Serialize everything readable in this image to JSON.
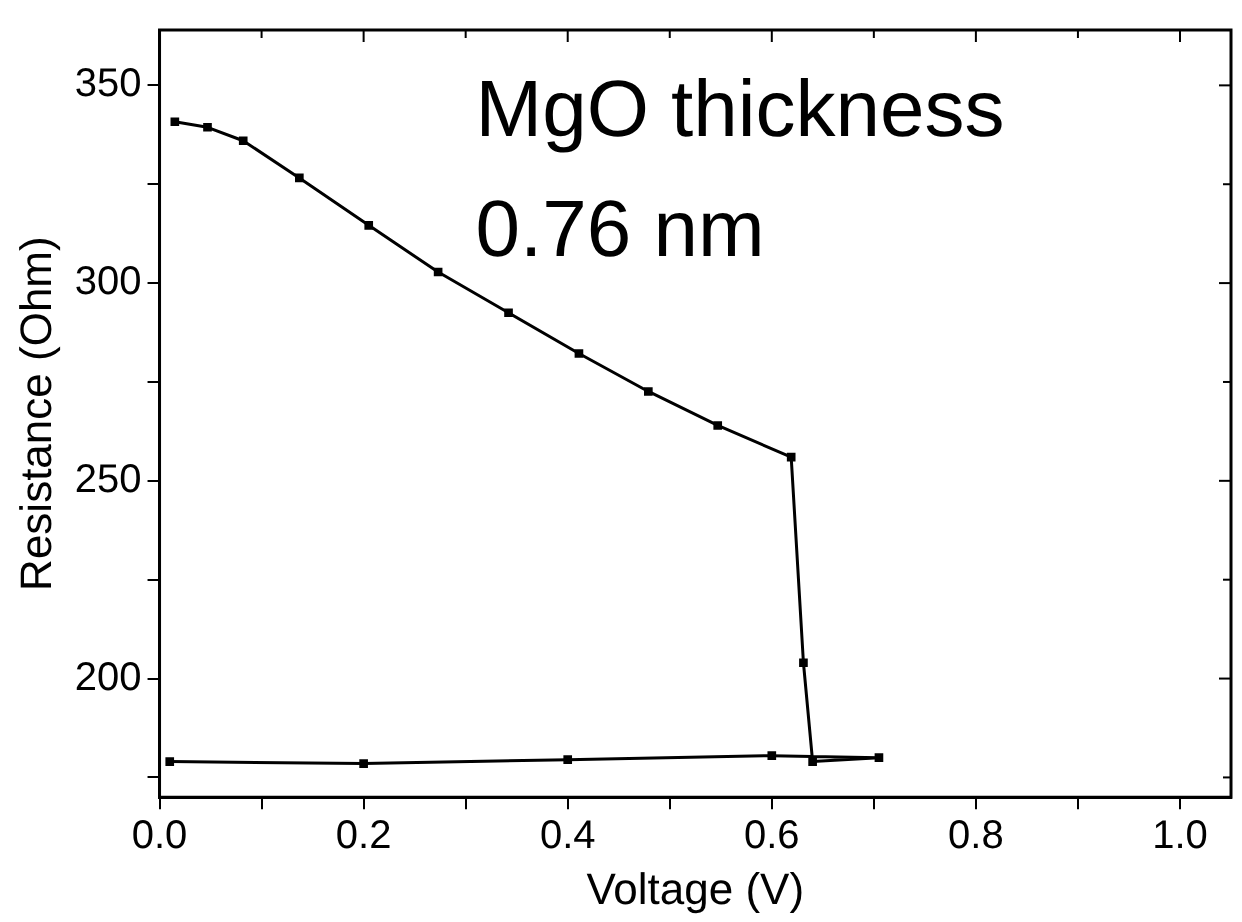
{
  "chart_data": {
    "type": "line",
    "xlabel": "Voltage (V)",
    "ylabel": "Resistance (Ohm)",
    "annotations": [
      "MgO thickness\n0.76 nm"
    ],
    "xlim": [
      0,
      1.05
    ],
    "ylim": [
      170,
      364
    ],
    "xticks": [
      {
        "value": 0,
        "label": "0.0"
      },
      {
        "value": 0.1,
        "label": null
      },
      {
        "value": 0.2,
        "label": "0.2"
      },
      {
        "value": 0.3,
        "label": null
      },
      {
        "value": 0.4,
        "label": "0.4"
      },
      {
        "value": 0.5,
        "label": null
      },
      {
        "value": 0.6,
        "label": "0.6"
      },
      {
        "value": 0.7,
        "label": null
      },
      {
        "value": 0.8,
        "label": "0.8"
      },
      {
        "value": 0.9,
        "label": null
      },
      {
        "value": 1,
        "label": "1.0"
      }
    ],
    "yticks": [
      {
        "value": 175,
        "label": null
      },
      200,
      {
        "value": 225,
        "label": null
      },
      250,
      {
        "value": 275,
        "label": null
      },
      300,
      {
        "value": 325,
        "label": null
      },
      350
    ],
    "grid": false,
    "legend": false,
    "marker": "square",
    "line_style": "solid",
    "series": [
      {
        "color": "#000000",
        "x": [
          0.015,
          0.047,
          0.082,
          0.137,
          0.205,
          0.273,
          0.342,
          0.411,
          0.479,
          0.547,
          0.619,
          0.631,
          0.64,
          0.705,
          0.6,
          0.4,
          0.2,
          0.01
        ],
        "values": [
          340.8,
          339.4,
          336,
          326.6,
          314.6,
          302.8,
          292.5,
          282.2,
          272.6,
          264,
          256,
          204,
          179,
          180,
          180.5,
          179.5,
          178.5,
          179
        ]
      }
    ]
  }
}
